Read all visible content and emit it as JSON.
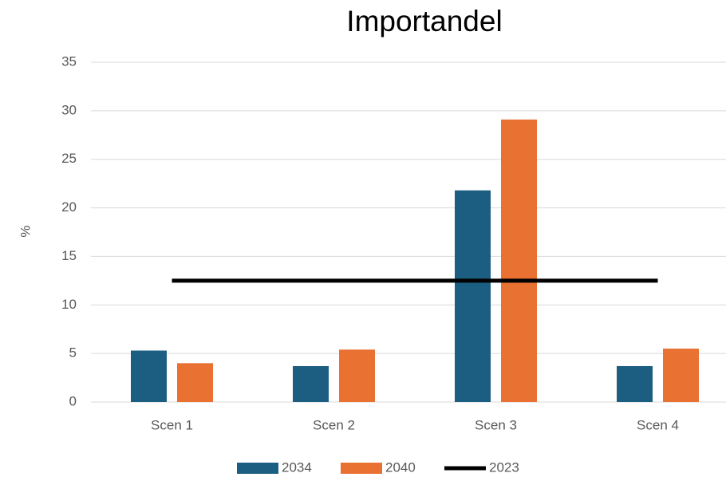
{
  "chart_data": {
    "type": "bar",
    "title": "Importandel",
    "y_label": "%",
    "categories": [
      "Scen 1",
      "Scen 2",
      "Scen 3",
      "Scen 4"
    ],
    "series": [
      {
        "name": "2034",
        "color": "#1b5e82",
        "type": "bar",
        "values": [
          5.3,
          3.7,
          21.8,
          3.7
        ]
      },
      {
        "name": "2040",
        "color": "#e97132",
        "type": "bar",
        "values": [
          4.0,
          5.4,
          29.1,
          5.5
        ]
      },
      {
        "name": "2023",
        "color": "#000000",
        "type": "line",
        "values": [
          12.5,
          12.5,
          12.5,
          12.5
        ]
      }
    ],
    "ylim": [
      0,
      35
    ],
    "yticks": [
      0,
      5,
      10,
      15,
      20,
      25,
      30,
      35
    ],
    "grid": true,
    "legend": "bottom"
  }
}
